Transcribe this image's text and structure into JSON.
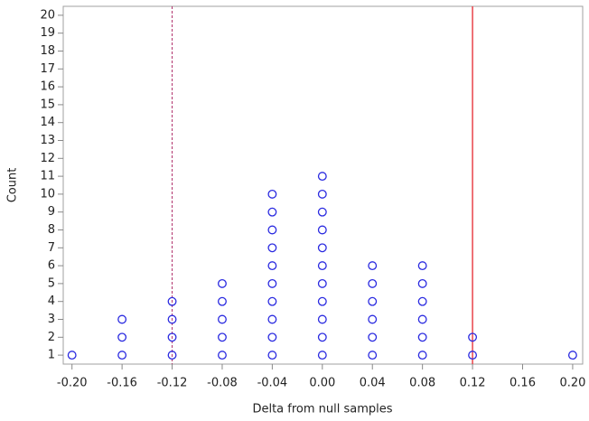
{
  "chart_data": {
    "type": "dotplot",
    "xlabel": "Delta from null samples",
    "ylabel": "Count",
    "x": [
      -0.2,
      -0.16,
      -0.12,
      -0.08,
      -0.04,
      0.0,
      0.04,
      0.08,
      0.12,
      0.16,
      0.2
    ],
    "counts": [
      1,
      3,
      4,
      5,
      10,
      11,
      6,
      6,
      2,
      0,
      1
    ],
    "marker_color": "#2a2ae0",
    "xlim": [
      -0.207,
      0.208
    ],
    "ylim": [
      0.5,
      20.5
    ],
    "xticks": [
      {
        "value": -0.2,
        "label": "-0.20"
      },
      {
        "value": -0.16,
        "label": "-0.16"
      },
      {
        "value": -0.12,
        "label": "-0.12"
      },
      {
        "value": -0.08,
        "label": "-0.08"
      },
      {
        "value": -0.04,
        "label": "-0.04"
      },
      {
        "value": 0.0,
        "label": "0.00"
      },
      {
        "value": 0.04,
        "label": "0.04"
      },
      {
        "value": 0.08,
        "label": "0.08"
      },
      {
        "value": 0.12,
        "label": "0.12"
      },
      {
        "value": 0.16,
        "label": "0.16"
      },
      {
        "value": 0.2,
        "label": "0.20"
      }
    ],
    "yticks": [
      1,
      2,
      3,
      4,
      5,
      6,
      7,
      8,
      9,
      10,
      11,
      12,
      13,
      14,
      15,
      16,
      17,
      18,
      19,
      20
    ],
    "reference_lines": [
      {
        "x": -0.12,
        "style": "dashed",
        "color": "#b0306a"
      },
      {
        "x": 0.12,
        "style": "solid",
        "color": "#e8434a"
      }
    ]
  }
}
